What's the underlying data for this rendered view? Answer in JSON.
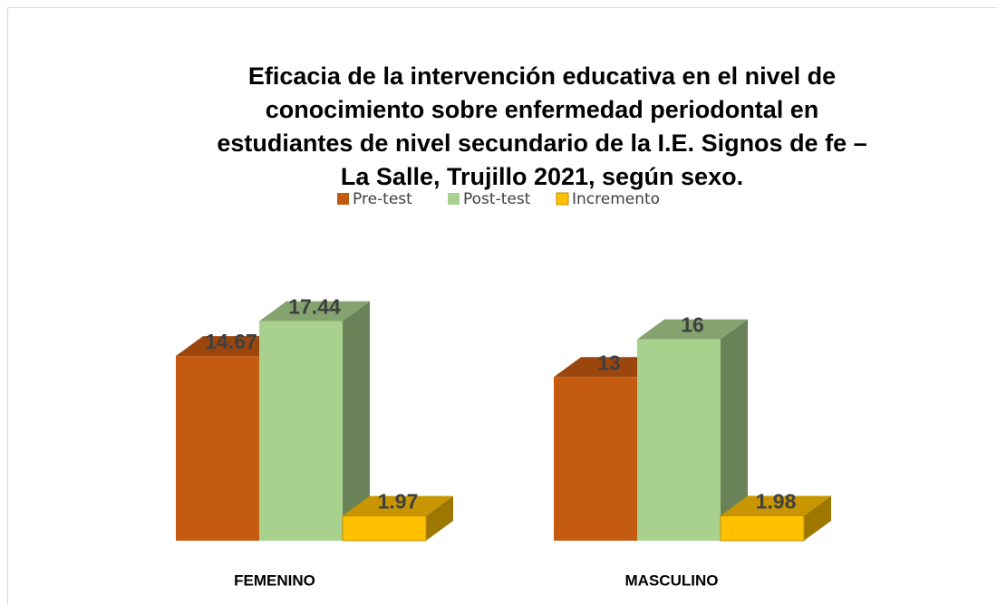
{
  "chart_data": {
    "type": "bar3d",
    "title": [
      "Eficacia de la intervención educativa en el nivel de",
      "conocimiento sobre enfermedad periodontal en",
      "estudiantes de nivel secundario de la I.E. Signos de fe –",
      "La Salle, Trujillo 2021, según sexo."
    ],
    "categories": [
      "FEMENINO",
      "MASCULINO"
    ],
    "series": [
      {
        "name": "Pre-test",
        "color": "#c55a11",
        "values": [
          14.67,
          13
        ]
      },
      {
        "name": "Post-test",
        "color": "#a9d18e",
        "values": [
          17.44,
          16
        ]
      },
      {
        "name": "Incremento",
        "color": "#ffc000",
        "values": [
          1.97,
          1.98
        ]
      }
    ],
    "legend": "top"
  }
}
